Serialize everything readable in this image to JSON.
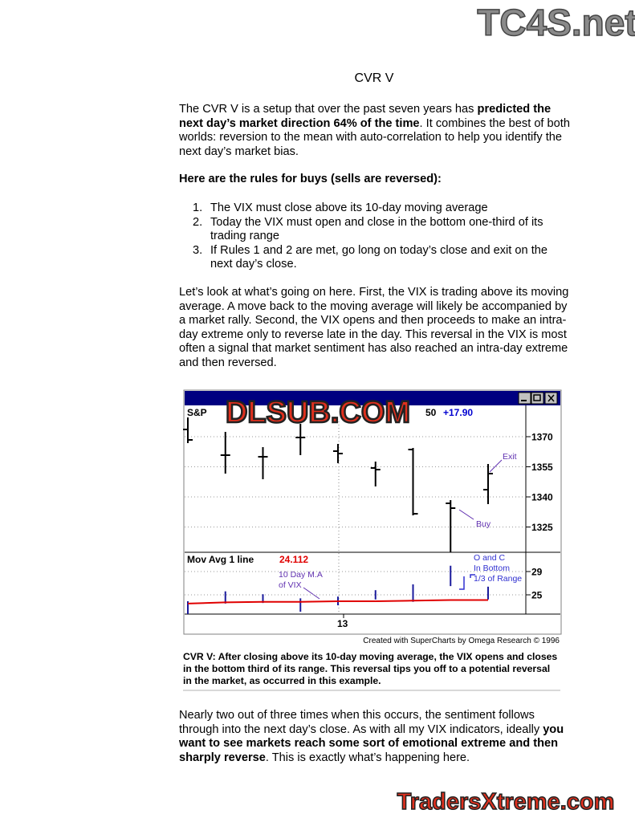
{
  "watermarks": {
    "top": "TC4S.net",
    "center": "DLSUB.COM",
    "bottom": "TradersXtreme.com"
  },
  "title": "CVR V",
  "para1": [
    {
      "text": "The CVR V is a setup that over the past seven years has ",
      "bold": false
    },
    {
      "text": "predicted the next day’s market direction 64% of the time",
      "bold": true
    },
    {
      "text": ". It combines the best of both worlds: reversion to the mean with auto-correlation to help you identify the next day’s market bias.",
      "bold": false
    }
  ],
  "rules_heading": "Here are the rules for buys (sells are reversed):",
  "rules": [
    {
      "number": "1.",
      "text": "The VIX must close above its 10-day moving average"
    },
    {
      "number": "2.",
      "text": "Today the VIX must open and close in the bottom one-third of its trading range"
    },
    {
      "number": "3.",
      "text": "If Rules 1 and 2 are met, go long on today’s close and exit on the next day’s close."
    }
  ],
  "para2": "Let’s look at what’s going on here. First, the VIX is trading above its moving average. A move back to the moving average will likely be accompanied by a market rally. Second, the VIX opens and then proceeds to make an intra-day extreme only to reverse late in the day. This reversal in the VIX is most often a signal that market sentiment has also reached an intra-day extreme and then reversed.",
  "figure": {
    "chart_data": {
      "type": "ohlc",
      "header": {
        "symbol": "S&P",
        "last": "50",
        "change": "+17.90"
      },
      "x_label": "13",
      "ylim": [
        1312.4,
        1385.6
      ],
      "yticks": [
        1370,
        1355,
        1340,
        1325
      ],
      "open": [
        1373.6,
        1360.8,
        1360.0,
        1369.6,
        1362.8,
        1354.4,
        1363.6,
        1336.8,
        1343.6
      ],
      "high": [
        1379.6,
        1372.4,
        1364.8,
        1376.4,
        1366.4,
        1357.6,
        1364.4,
        1338.4,
        1356.4
      ],
      "low": [
        1366.8,
        1351.6,
        1348.8,
        1360.8,
        1356.8,
        1345.2,
        1330.8,
        1312.4,
        1336.4
      ],
      "close": [
        1368.4,
        1360.8,
        1360.0,
        1369.6,
        1361.6,
        1353.6,
        1331.6,
        1334.4,
        1351.6
      ],
      "annotations": {
        "exit": "Exit",
        "buy": "Buy"
      },
      "indicator": {
        "title": "Mov Avg 1 line",
        "ylim": [
          21.69,
          32.31
        ],
        "yticks": [
          29,
          25
        ],
        "high": [
          23.9,
          25.6,
          25.1,
          24.4,
          24.7,
          25.8,
          26.8,
          30.0,
          26.4
        ],
        "low": [
          21.7,
          23.5,
          23.6,
          22.1,
          23.2,
          24.2,
          23.8,
          26.5,
          24.2
        ],
        "ma": [
          23.5,
          23.7,
          23.8,
          23.8,
          23.9,
          23.9,
          24.0,
          24.1,
          24.112
        ],
        "ma_color": "#e00000",
        "ma_note": [
          "10 Day M.A",
          "of VIX"
        ],
        "range_note": [
          "O and C",
          "In Bottom",
          "1/3 of Range"
        ]
      },
      "credit": "Created with SuperCharts by Omega Research © 1996"
    },
    "caption": "CVR V: After closing above its 10-day moving average, the VIX opens and closes in the bottom third of its range. This reversal tips you off to a potential reversal in the market, as occurred in this example."
  },
  "para3": [
    {
      "text": "Nearly two out of three times when this occurs, the sentiment follows through into the next day’s close. As with all my VIX indicators, ideally ",
      "bold": false
    },
    {
      "text": "you want to see markets reach some sort of emotional extreme and then sharply reverse",
      "bold": true
    },
    {
      "text": ". This is exactly what’s happening here.",
      "bold": false
    }
  ]
}
